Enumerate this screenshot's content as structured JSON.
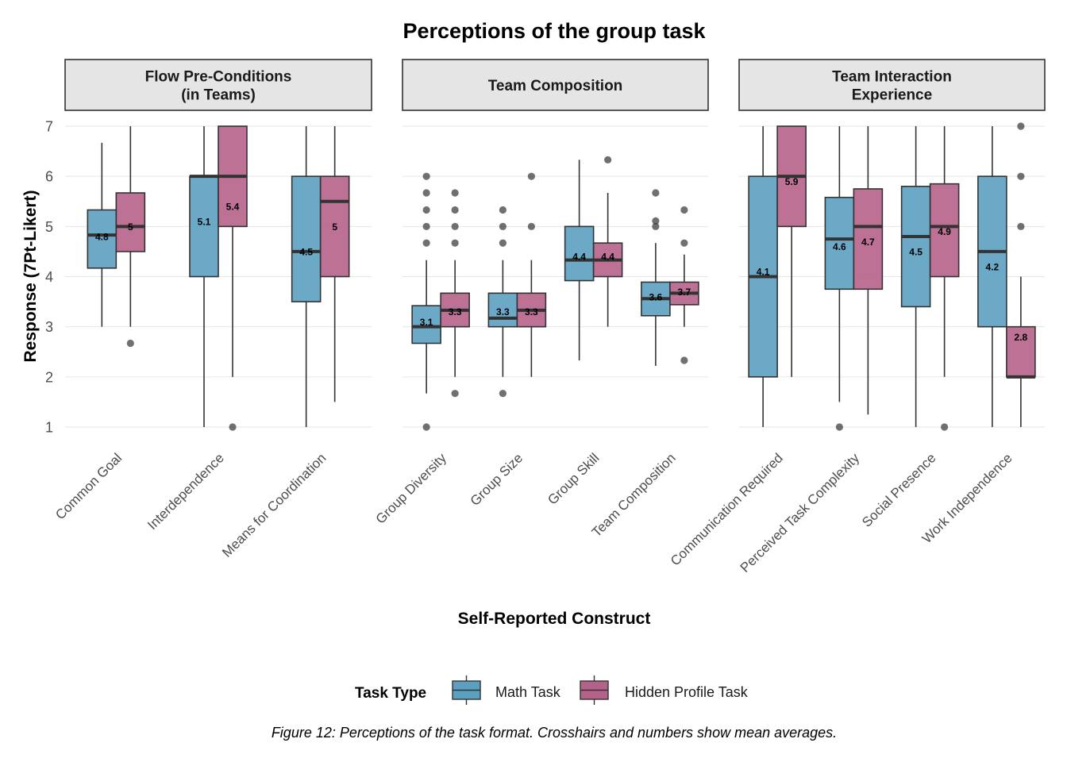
{
  "chart_data": {
    "type": "boxplot",
    "title": "Perceptions of the group task",
    "xlabel": "Self-Reported Construct",
    "ylabel": "Response (7Pt-Likert)",
    "ylim": [
      1,
      7
    ],
    "y_ticks": [
      "1",
      "2",
      "3",
      "4",
      "5",
      "6",
      "7"
    ],
    "grid": true,
    "legend": {
      "title": "Task Type",
      "position": "bottom",
      "entries": [
        {
          "name": "Math Task",
          "color": "#5ca0c0"
        },
        {
          "name": "Hidden Profile Task",
          "color": "#b5628a"
        }
      ]
    },
    "caption": "Figure 12: Perceptions of the task format. Crosshairs and numbers show mean averages.",
    "colors": {
      "math": "#5ca0c0",
      "hidden": "#b5628a",
      "strip_fill": "#e5e5e5",
      "median_line": "#333333"
    },
    "panels": [
      {
        "title_lines": [
          "Flow Pre-Conditions",
          "(in Teams)"
        ],
        "constructs": [
          {
            "label": "Common Goal",
            "math": {
              "lo": 3,
              "q1": 4.17,
              "median": 4.83,
              "q3": 5.33,
              "hi": 6.67,
              "mean": 4.8,
              "mean_label": "4.8",
              "outliers": []
            },
            "hidden": {
              "lo": 3,
              "q1": 4.5,
              "median": 5,
              "q3": 5.67,
              "hi": 7,
              "mean": 5,
              "mean_label": "5",
              "outliers": [
                2.67
              ]
            }
          },
          {
            "label": "Interdependence",
            "math": {
              "lo": 1,
              "q1": 4,
              "median": 6,
              "q3": 6,
              "hi": 7,
              "mean": 5.1,
              "mean_label": "5.1",
              "outliers": []
            },
            "hidden": {
              "lo": 2,
              "q1": 5,
              "median": 6,
              "q3": 7,
              "hi": 7,
              "mean": 5.4,
              "mean_label": "5.4",
              "outliers": [
                1
              ]
            }
          },
          {
            "label": "Means for Coordination",
            "math": {
              "lo": 1,
              "q1": 3.5,
              "median": 4.5,
              "q3": 6,
              "hi": 7,
              "mean": 4.5,
              "mean_label": "4.5",
              "outliers": []
            },
            "hidden": {
              "lo": 1.5,
              "q1": 4,
              "median": 5.5,
              "q3": 6,
              "hi": 7,
              "mean": 5,
              "mean_label": "5",
              "outliers": []
            }
          }
        ]
      },
      {
        "title_lines": [
          "Team Composition"
        ],
        "constructs": [
          {
            "label": "Group Diversity",
            "math": {
              "lo": 1.67,
              "q1": 2.67,
              "median": 3,
              "q3": 3.42,
              "hi": 4.33,
              "mean": 3.1,
              "mean_label": "3.1",
              "outliers": [
                1,
                4.67,
                5,
                5.33,
                5.67,
                6
              ]
            },
            "hidden": {
              "lo": 2,
              "q1": 3,
              "median": 3.33,
              "q3": 3.67,
              "hi": 4.33,
              "mean": 3.3,
              "mean_label": "3.3",
              "outliers": [
                1.67,
                4.67,
                5,
                5.33,
                5.67
              ]
            }
          },
          {
            "label": "Group Size",
            "math": {
              "lo": 2,
              "q1": 3,
              "median": 3.17,
              "q3": 3.67,
              "hi": 4.33,
              "mean": 3.3,
              "mean_label": "3.3",
              "outliers": [
                1.67,
                4.67,
                5,
                5.33
              ]
            },
            "hidden": {
              "lo": 2,
              "q1": 3,
              "median": 3.33,
              "q3": 3.67,
              "hi": 4.33,
              "mean": 3.3,
              "mean_label": "3.3",
              "outliers": [
                5,
                6
              ]
            }
          },
          {
            "label": "Group Skill",
            "math": {
              "lo": 2.33,
              "q1": 3.92,
              "median": 4.33,
              "q3": 5,
              "hi": 6.33,
              "mean": 4.4,
              "mean_label": "4.4",
              "outliers": []
            },
            "hidden": {
              "lo": 3,
              "q1": 4,
              "median": 4.33,
              "q3": 4.67,
              "hi": 5.67,
              "mean": 4.4,
              "mean_label": "4.4",
              "outliers": [
                6.33
              ]
            }
          },
          {
            "label": "Team Composition",
            "math": {
              "lo": 2.22,
              "q1": 3.22,
              "median": 3.56,
              "q3": 3.89,
              "hi": 4.67,
              "mean": 3.6,
              "mean_label": "3.6",
              "outliers": [
                5,
                5.11,
                5.67
              ]
            },
            "hidden": {
              "lo": 3,
              "q1": 3.44,
              "median": 3.67,
              "q3": 3.89,
              "hi": 4.44,
              "mean": 3.7,
              "mean_label": "3.7",
              "outliers": [
                2.33,
                4.67,
                5.33
              ]
            }
          }
        ]
      },
      {
        "title_lines": [
          "Team Interaction",
          "Experience"
        ],
        "constructs": [
          {
            "label": "Communication Required",
            "math": {
              "lo": 1,
              "q1": 2,
              "median": 4,
              "q3": 6,
              "hi": 7,
              "mean": 4.1,
              "mean_label": "4.1",
              "outliers": []
            },
            "hidden": {
              "lo": 2,
              "q1": 5,
              "median": 6,
              "q3": 7,
              "hi": 7,
              "mean": 5.9,
              "mean_label": "5.9",
              "outliers": []
            }
          },
          {
            "label": "Perceived Task Complexity",
            "math": {
              "lo": 1.5,
              "q1": 3.75,
              "median": 4.75,
              "q3": 5.58,
              "hi": 7,
              "mean": 4.6,
              "mean_label": "4.6",
              "outliers": [
                1
              ]
            },
            "hidden": {
              "lo": 1.25,
              "q1": 3.75,
              "median": 5,
              "q3": 5.75,
              "hi": 7,
              "mean": 4.7,
              "mean_label": "4.7",
              "outliers": []
            }
          },
          {
            "label": "Social Presence",
            "math": {
              "lo": 1,
              "q1": 3.4,
              "median": 4.8,
              "q3": 5.8,
              "hi": 7,
              "mean": 4.5,
              "mean_label": "4.5",
              "outliers": []
            },
            "hidden": {
              "lo": 2,
              "q1": 4,
              "median": 5,
              "q3": 5.85,
              "hi": 7,
              "mean": 4.9,
              "mean_label": "4.9",
              "outliers": [
                1
              ]
            }
          },
          {
            "label": "Work Independence",
            "math": {
              "lo": 1,
              "q1": 3,
              "median": 4.5,
              "q3": 6,
              "hi": 7,
              "mean": 4.2,
              "mean_label": "4.2",
              "outliers": []
            },
            "hidden": {
              "lo": 1,
              "q1": 2,
              "median": 2,
              "q3": 3,
              "hi": 4,
              "mean": 2.8,
              "mean_label": "2.8",
              "outliers": [
                5,
                6,
                7
              ]
            }
          }
        ]
      }
    ]
  }
}
